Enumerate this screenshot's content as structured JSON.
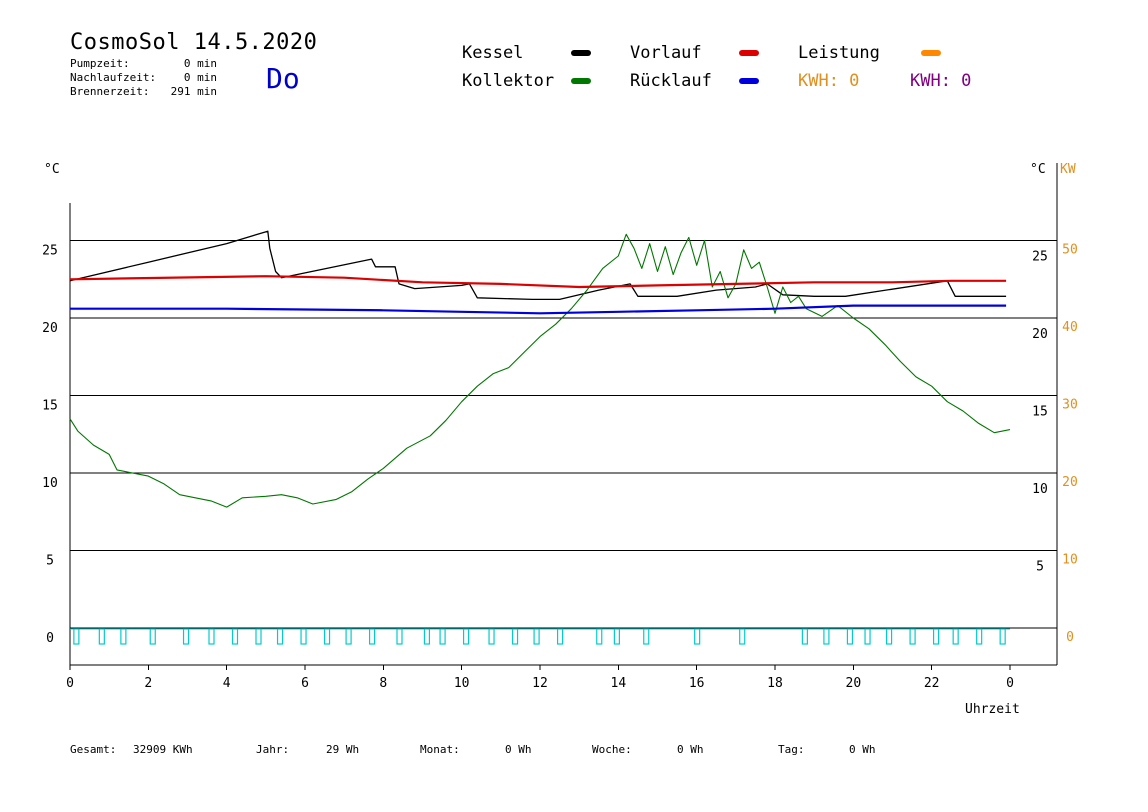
{
  "header": {
    "title": "CosmoSol 14.5.2020",
    "pump_label": "Pumpzeit:",
    "pump_value": "0 min",
    "nachlauf_label": "Nachlaufzeit:",
    "nachlauf_value": "0 min",
    "brenner_label": "Brennerzeit:",
    "brenner_value": "291 min",
    "weekday": "Do"
  },
  "legend": {
    "kessel": "Kessel",
    "kollektor": "Kollektor",
    "vorlauf": "Vorlauf",
    "ruecklauf": "Rücklauf",
    "leistung": "Leistung",
    "kwh_orange": "KWH: 0",
    "kwh_purple": "KWH: 0"
  },
  "colors": {
    "kessel": "#000000",
    "kollektor": "#007700",
    "vorlauf": "#dd0000",
    "ruecklauf": "#0000dd",
    "leistung": "#ff8800",
    "kwh_purple": "#800080",
    "pump": "#00cccc",
    "axis_kw": "#e09020"
  },
  "footer": {
    "gesamt_label": "Gesamt:",
    "gesamt_value": "32909 KWh",
    "jahr_label": "Jahr:",
    "jahr_value": "29 Wh",
    "monat_label": "Monat:",
    "monat_value": "0 Wh",
    "woche_label": "Woche:",
    "woche_value": "0 Wh",
    "tag_label": "Tag:",
    "tag_value": "0 Wh"
  },
  "chart_data": {
    "type": "line",
    "xlabel": "Uhrzeit",
    "ylabel_left": "°C",
    "ylabel_right_c": "°C",
    "ylabel_right_kw": "KW",
    "xlim": [
      0,
      24
    ],
    "ylim": [
      -2,
      27
    ],
    "x_ticks": [
      "0",
      "2",
      "4",
      "6",
      "8",
      "10",
      "12",
      "14",
      "16",
      "18",
      "20",
      "22",
      "0"
    ],
    "y_left_ticks": [
      0,
      5,
      10,
      15,
      20,
      25
    ],
    "y_right_c_ticks": [
      5,
      10,
      15,
      20,
      25
    ],
    "y_right_kw_ticks": [
      0,
      10,
      20,
      30,
      40,
      50
    ],
    "gridlines_y": [
      0,
      5,
      10,
      15,
      20,
      25
    ],
    "series": [
      {
        "name": "Kessel",
        "points": [
          [
            0,
            22.4
          ],
          [
            2,
            23.6
          ],
          [
            4,
            24.8
          ],
          [
            5.05,
            25.6
          ],
          [
            5.1,
            24.5
          ],
          [
            5.25,
            23
          ],
          [
            5.4,
            22.6
          ],
          [
            7.7,
            23.8
          ],
          [
            7.8,
            23.3
          ],
          [
            8.3,
            23.3
          ],
          [
            8.4,
            22.2
          ],
          [
            8.8,
            21.9
          ],
          [
            10.0,
            22.1
          ],
          [
            10.2,
            22.2
          ],
          [
            10.4,
            21.3
          ],
          [
            11.8,
            21.2
          ],
          [
            12.5,
            21.2
          ],
          [
            13.5,
            21.8
          ],
          [
            14.3,
            22.2
          ],
          [
            14.5,
            21.4
          ],
          [
            15.5,
            21.4
          ],
          [
            16.5,
            21.8
          ],
          [
            17.5,
            22.0
          ],
          [
            17.8,
            22.2
          ],
          [
            18.2,
            21.5
          ],
          [
            19,
            21.4
          ],
          [
            19.8,
            21.4
          ],
          [
            22.4,
            22.4
          ],
          [
            22.6,
            21.4
          ],
          [
            23.9,
            21.4
          ]
        ]
      },
      {
        "name": "Kollektor",
        "points": [
          [
            0,
            13.5
          ],
          [
            0.2,
            12.7
          ],
          [
            0.6,
            11.8
          ],
          [
            1.0,
            11.2
          ],
          [
            1.2,
            10.2
          ],
          [
            2.0,
            9.8
          ],
          [
            2.4,
            9.3
          ],
          [
            2.8,
            8.6
          ],
          [
            3.2,
            8.4
          ],
          [
            3.6,
            8.2
          ],
          [
            4.0,
            7.8
          ],
          [
            4.4,
            8.4
          ],
          [
            5.0,
            8.5
          ],
          [
            5.4,
            8.6
          ],
          [
            5.8,
            8.4
          ],
          [
            6.2,
            8.0
          ],
          [
            6.8,
            8.3
          ],
          [
            7.2,
            8.8
          ],
          [
            7.6,
            9.6
          ],
          [
            8.0,
            10.3
          ],
          [
            8.6,
            11.6
          ],
          [
            9.2,
            12.4
          ],
          [
            9.6,
            13.4
          ],
          [
            10.0,
            14.6
          ],
          [
            10.4,
            15.6
          ],
          [
            10.8,
            16.4
          ],
          [
            11.2,
            16.8
          ],
          [
            11.6,
            17.8
          ],
          [
            12.0,
            18.8
          ],
          [
            12.4,
            19.6
          ],
          [
            12.8,
            20.6
          ],
          [
            13.2,
            21.8
          ],
          [
            13.6,
            23.2
          ],
          [
            14.0,
            24.0
          ],
          [
            14.2,
            25.4
          ],
          [
            14.4,
            24.5
          ],
          [
            14.6,
            23.2
          ],
          [
            14.8,
            24.8
          ],
          [
            15.0,
            23.0
          ],
          [
            15.2,
            24.6
          ],
          [
            15.4,
            22.8
          ],
          [
            15.6,
            24.2
          ],
          [
            15.8,
            25.2
          ],
          [
            16.0,
            23.4
          ],
          [
            16.2,
            25.0
          ],
          [
            16.4,
            22.0
          ],
          [
            16.6,
            23.0
          ],
          [
            16.8,
            21.3
          ],
          [
            17.0,
            22.2
          ],
          [
            17.2,
            24.4
          ],
          [
            17.4,
            23.2
          ],
          [
            17.6,
            23.6
          ],
          [
            17.8,
            22.0
          ],
          [
            18.0,
            20.3
          ],
          [
            18.2,
            22.0
          ],
          [
            18.4,
            21.0
          ],
          [
            18.6,
            21.4
          ],
          [
            18.8,
            20.6
          ],
          [
            19.2,
            20.1
          ],
          [
            19.6,
            20.8
          ],
          [
            20.0,
            20.0
          ],
          [
            20.4,
            19.3
          ],
          [
            20.8,
            18.3
          ],
          [
            21.2,
            17.2
          ],
          [
            21.6,
            16.2
          ],
          [
            22.0,
            15.6
          ],
          [
            22.4,
            14.6
          ],
          [
            22.8,
            14.0
          ],
          [
            23.2,
            13.2
          ],
          [
            23.6,
            12.6
          ],
          [
            24.0,
            12.8
          ]
        ]
      },
      {
        "name": "Vorlauf",
        "points": [
          [
            0,
            22.5
          ],
          [
            5,
            22.7
          ],
          [
            7,
            22.6
          ],
          [
            9,
            22.3
          ],
          [
            11,
            22.2
          ],
          [
            13,
            22.0
          ],
          [
            15,
            22.1
          ],
          [
            17,
            22.2
          ],
          [
            19,
            22.3
          ],
          [
            21,
            22.3
          ],
          [
            22.5,
            22.4
          ],
          [
            23.9,
            22.4
          ]
        ]
      },
      {
        "name": "Rücklauf",
        "points": [
          [
            0,
            20.6
          ],
          [
            4,
            20.6
          ],
          [
            8,
            20.5
          ],
          [
            10,
            20.4
          ],
          [
            12,
            20.3
          ],
          [
            14,
            20.4
          ],
          [
            16,
            20.5
          ],
          [
            18,
            20.6
          ],
          [
            20,
            20.8
          ],
          [
            22,
            20.8
          ],
          [
            23.9,
            20.8
          ]
        ]
      }
    ],
    "pump_pulses_h": [
      0.15,
      0.8,
      1.35,
      2.1,
      2.95,
      3.6,
      4.2,
      4.8,
      5.35,
      5.95,
      6.55,
      7.1,
      7.7,
      8.4,
      9.1,
      9.5,
      10.1,
      10.75,
      11.35,
      11.9,
      12.5,
      13.5,
      13.95,
      14.7,
      16.0,
      17.15,
      18.75,
      19.3,
      19.9,
      20.35,
      20.9,
      21.5,
      22.1,
      22.6,
      23.2,
      23.8
    ]
  }
}
